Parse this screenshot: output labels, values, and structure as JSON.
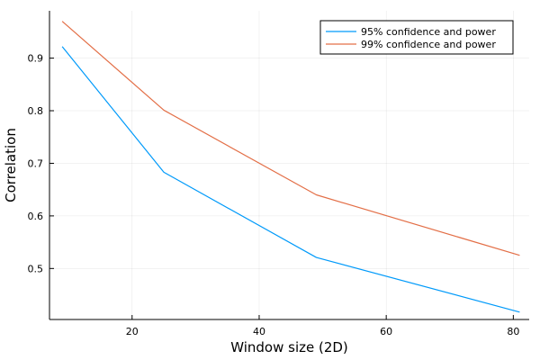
{
  "chart_data": {
    "type": "line",
    "title": "",
    "xlabel": "Window size (2D)",
    "ylabel": "Correlation",
    "xlim": [
      7,
      82.5
    ],
    "ylim": [
      0.403,
      0.99
    ],
    "xticks": [
      20,
      40,
      60,
      80
    ],
    "yticks": [
      0.5,
      0.6,
      0.7,
      0.8,
      0.9
    ],
    "grid": true,
    "legend_position": "top-right",
    "x": [
      9,
      25,
      49,
      81
    ],
    "series": [
      {
        "name": "95% confidence and power",
        "color": "#009AFA",
        "values": [
          0.922,
          0.683,
          0.521,
          0.417
        ]
      },
      {
        "name": "99% confidence and power",
        "color": "#E36F47",
        "values": [
          0.97,
          0.801,
          0.64,
          0.525
        ]
      }
    ]
  }
}
